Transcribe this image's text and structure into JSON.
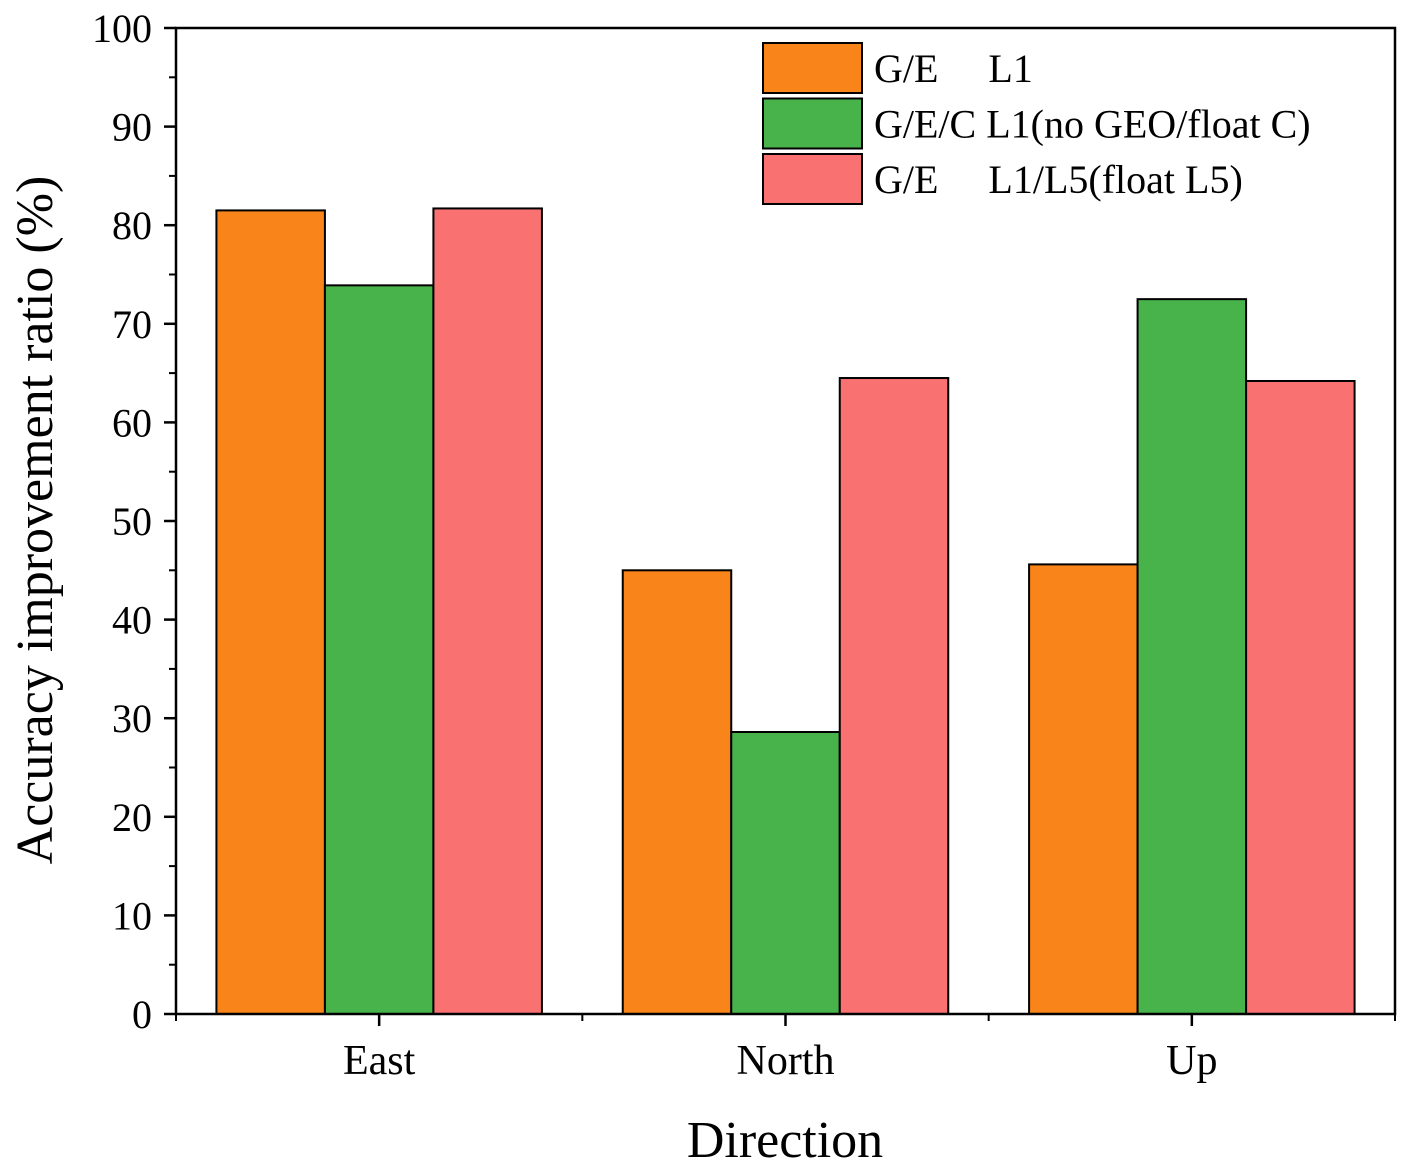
{
  "chart_data": {
    "type": "bar",
    "title": "",
    "xlabel": "Direction",
    "ylabel": "Accuracy improvement ratio (%)",
    "ylim": [
      0,
      100
    ],
    "yticks": [
      0,
      10,
      20,
      30,
      40,
      50,
      60,
      70,
      80,
      90,
      100
    ],
    "categories": [
      "East",
      "North",
      "Up"
    ],
    "legend_position": "top-right",
    "series": [
      {
        "name": "G/E     L1",
        "color": "#F8841A",
        "values": [
          81.5,
          45.0,
          45.6
        ]
      },
      {
        "name": "G/E/C L1(no GEO/float C)",
        "color": "#48B34A",
        "values": [
          73.9,
          28.6,
          72.5
        ]
      },
      {
        "name": "G/E     L1/L5(float L5)",
        "color": "#F97171",
        "values": [
          81.7,
          64.5,
          64.2
        ]
      }
    ]
  }
}
